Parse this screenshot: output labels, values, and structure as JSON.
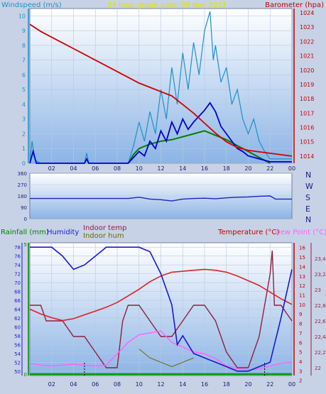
{
  "top": {
    "left_title": "Windspeed (m/s)",
    "center_title": "24 hour graph date: 09 Nov 2023",
    "right_title": "Barometer (hpa)"
  },
  "wind_dir": {
    "letters": [
      "N",
      "W",
      "S",
      "E",
      "N"
    ]
  },
  "bottom": {
    "label_rain": "Rainfall (mm)",
    "label_humidity": "Humidity",
    "label_indoor_temp": "Indoor temp",
    "label_indoor_hum": "Indoor hum",
    "label_temperature": "Temperature (°C)",
    "label_dewpoint": "Dew Point (°C)"
  },
  "colors": {
    "background": "#c8d2e6",
    "wind_gust": "#1e90c8",
    "wind_avg": "#0000d0",
    "wind_green": "#008000",
    "baro": "#d00000",
    "wind_dir": "#2020c0",
    "humidity": "#1a1ad0",
    "temperature": "#e02020",
    "dewpoint": "#ff60ff",
    "indoor_temp": "#902040",
    "indoor_hum": "#6a6a00",
    "rain": "#00a000"
  },
  "chart_data": [
    {
      "type": "line",
      "name": "wind-baro",
      "x_ticks": [
        "02",
        "04",
        "06",
        "08",
        "10",
        "12",
        "14",
        "16",
        "18",
        "20",
        "22",
        "00"
      ],
      "y_left_ticks": [
        "0",
        "1",
        "2",
        "3",
        "4",
        "5",
        "6",
        "7",
        "8",
        "9",
        "10"
      ],
      "y_right_ticks": [
        "1014",
        "1015",
        "1016",
        "1017",
        "1018",
        "1019",
        "1020",
        "1021",
        "1022",
        "1023",
        "1024"
      ],
      "ylim_left": [
        0,
        10.5
      ],
      "ylim_right": [
        1013.5,
        1024.3
      ],
      "xlim": [
        0,
        24
      ],
      "series": [
        {
          "key": "baro",
          "axis": "right",
          "points": [
            [
              0,
              1023.2
            ],
            [
              1,
              1022.7
            ],
            [
              2,
              1022.3
            ],
            [
              3,
              1021.9
            ],
            [
              4,
              1021.5
            ],
            [
              5,
              1021.1
            ],
            [
              6,
              1020.7
            ],
            [
              7,
              1020.3
            ],
            [
              8,
              1019.9
            ],
            [
              9,
              1019.5
            ],
            [
              10,
              1019.1
            ],
            [
              11,
              1018.8
            ],
            [
              12,
              1018.5
            ],
            [
              13,
              1018.2
            ],
            [
              14,
              1017.6
            ],
            [
              15,
              1017.0
            ],
            [
              16,
              1016.3
            ],
            [
              17,
              1015.6
            ],
            [
              18,
              1015.0
            ],
            [
              19,
              1014.6
            ],
            [
              20,
              1014.4
            ],
            [
              21,
              1014.3
            ],
            [
              22,
              1014.2
            ],
            [
              23,
              1014.1
            ],
            [
              24,
              1014.0
            ]
          ]
        },
        {
          "key": "gust",
          "axis": "left",
          "points": [
            [
              0,
              0
            ],
            [
              0.2,
              1.5
            ],
            [
              0.5,
              0.2
            ],
            [
              1,
              0
            ],
            [
              5,
              0
            ],
            [
              5.2,
              0.7
            ],
            [
              5.4,
              0
            ],
            [
              9,
              0
            ],
            [
              9.5,
              1.2
            ],
            [
              10,
              2.8
            ],
            [
              10.5,
              1.5
            ],
            [
              11,
              3.5
            ],
            [
              11.5,
              2.0
            ],
            [
              12,
              5.0
            ],
            [
              12.5,
              3.0
            ],
            [
              13,
              6.5
            ],
            [
              13.5,
              4.0
            ],
            [
              14,
              7.5
            ],
            [
              14.5,
              5.0
            ],
            [
              15,
              8.2
            ],
            [
              15.5,
              6.0
            ],
            [
              16,
              9.0
            ],
            [
              16.5,
              10.3
            ],
            [
              16.8,
              7.0
            ],
            [
              17,
              8.0
            ],
            [
              17.5,
              5.5
            ],
            [
              18,
              6.5
            ],
            [
              18.5,
              4.0
            ],
            [
              19,
              5.0
            ],
            [
              19.5,
              3.0
            ],
            [
              20,
              2.0
            ],
            [
              20.5,
              3.0
            ],
            [
              21,
              1.5
            ],
            [
              21.5,
              0.8
            ],
            [
              22,
              0.3
            ],
            [
              24,
              0.3
            ]
          ]
        },
        {
          "key": "avg",
          "axis": "left",
          "points": [
            [
              0,
              0
            ],
            [
              0.3,
              0.8
            ],
            [
              0.6,
              0
            ],
            [
              5,
              0
            ],
            [
              5.2,
              0.3
            ],
            [
              5.4,
              0
            ],
            [
              9,
              0
            ],
            [
              10,
              0.8
            ],
            [
              10.5,
              0.5
            ],
            [
              11,
              1.5
            ],
            [
              11.5,
              1.0
            ],
            [
              12,
              2.2
            ],
            [
              12.5,
              1.5
            ],
            [
              13,
              2.8
            ],
            [
              13.5,
              2.0
            ],
            [
              14,
              3.0
            ],
            [
              14.5,
              2.3
            ],
            [
              15,
              2.8
            ],
            [
              15.5,
              3.2
            ],
            [
              16,
              3.6
            ],
            [
              16.5,
              4.1
            ],
            [
              17,
              3.5
            ],
            [
              17.5,
              2.5
            ],
            [
              18,
              2.0
            ],
            [
              18.5,
              1.5
            ],
            [
              19,
              1.0
            ],
            [
              19.5,
              0.8
            ],
            [
              20,
              0.5
            ],
            [
              21,
              0.3
            ],
            [
              22,
              0.1
            ],
            [
              24,
              0.1
            ]
          ]
        },
        {
          "key": "green",
          "axis": "left",
          "points": [
            [
              9,
              0
            ],
            [
              9.5,
              0.6
            ],
            [
              10,
              1.0
            ],
            [
              11,
              1.3
            ],
            [
              12,
              1.5
            ],
            [
              13,
              1.6
            ],
            [
              14,
              1.8
            ],
            [
              15,
              2.0
            ],
            [
              16,
              2.2
            ],
            [
              17,
              1.9
            ],
            [
              18,
              1.6
            ],
            [
              19,
              1.2
            ],
            [
              20,
              0.8
            ],
            [
              21,
              0.4
            ],
            [
              22,
              0
            ]
          ]
        }
      ]
    },
    {
      "type": "line",
      "name": "wind-direction",
      "y_ticks": [
        "0",
        "90",
        "180",
        "270",
        "360"
      ],
      "ylim": [
        0,
        360
      ],
      "xlim": [
        0,
        24
      ],
      "series": [
        {
          "key": "dir",
          "points": [
            [
              0,
              160
            ],
            [
              9,
              160
            ],
            [
              9.5,
              165
            ],
            [
              10,
              170
            ],
            [
              11,
              155
            ],
            [
              12,
              150
            ],
            [
              13,
              140
            ],
            [
              14,
              155
            ],
            [
              15,
              160
            ],
            [
              16,
              162
            ],
            [
              17,
              158
            ],
            [
              18,
              165
            ],
            [
              19,
              170
            ],
            [
              20,
              172
            ],
            [
              21,
              178
            ],
            [
              22,
              180
            ],
            [
              22.5,
              155
            ],
            [
              24,
              155
            ]
          ]
        }
      ]
    },
    {
      "type": "line",
      "name": "temp-humidity",
      "x_ticks": [
        "02",
        "04",
        "06",
        "08",
        "10",
        "12",
        "14",
        "16",
        "18",
        "20",
        "22",
        "00"
      ],
      "y_left_ticks": [
        "50",
        "52",
        "54",
        "56",
        "58",
        "60",
        "62",
        "64",
        "66",
        "68",
        "70",
        "72",
        "74",
        "76",
        "78"
      ],
      "y_temp_ticks": [
        "2",
        "3",
        "4",
        "5",
        "6",
        "7",
        "8",
        "9",
        "10",
        "11",
        "12",
        "13",
        "14",
        "15",
        "16"
      ],
      "y_indoor_ticks": [
        "22",
        "22,2",
        "22,4",
        "22,6",
        "22,8",
        "23",
        "23,2",
        "23,4"
      ],
      "rain_ticks": [
        "0",
        "5"
      ],
      "ylim_left": [
        49,
        79
      ],
      "ylim_temp": [
        2.5,
        16.5
      ],
      "ylim_indoor": [
        21.9,
        23.6
      ],
      "xlim": [
        0,
        24
      ],
      "series": [
        {
          "key": "humidity",
          "axis": "left",
          "points": [
            [
              0,
              78
            ],
            [
              2,
              78
            ],
            [
              3,
              76
            ],
            [
              4,
              73
            ],
            [
              5,
              74
            ],
            [
              6,
              76
            ],
            [
              7,
              78
            ],
            [
              8,
              78
            ],
            [
              10,
              78
            ],
            [
              11,
              77
            ],
            [
              12,
              72
            ],
            [
              13,
              65
            ],
            [
              13.5,
              56
            ],
            [
              14,
              58
            ],
            [
              15,
              54
            ],
            [
              16,
              53
            ],
            [
              17,
              52
            ],
            [
              18,
              51
            ],
            [
              19,
              50
            ],
            [
              20,
              50
            ],
            [
              21,
              51
            ],
            [
              22,
              52
            ],
            [
              23,
              62
            ],
            [
              24,
              73
            ]
          ]
        },
        {
          "key": "temperature",
          "axis": "temp",
          "points": [
            [
              0,
              9.5
            ],
            [
              1,
              9.0
            ],
            [
              2,
              8.6
            ],
            [
              3,
              8.3
            ],
            [
              4,
              8.5
            ],
            [
              5,
              8.9
            ],
            [
              6,
              9.3
            ],
            [
              7,
              9.7
            ],
            [
              8,
              10.2
            ],
            [
              9,
              10.9
            ],
            [
              10,
              11.6
            ],
            [
              11,
              12.4
            ],
            [
              12,
              13.0
            ],
            [
              13,
              13.4
            ],
            [
              14,
              13.5
            ],
            [
              15,
              13.6
            ],
            [
              16,
              13.7
            ],
            [
              17,
              13.6
            ],
            [
              18,
              13.4
            ],
            [
              19,
              13.0
            ],
            [
              20,
              12.5
            ],
            [
              21,
              12.0
            ],
            [
              22,
              11.3
            ],
            [
              23,
              10.6
            ],
            [
              24,
              10.0
            ]
          ]
        },
        {
          "key": "dewpoint",
          "axis": "temp",
          "points": [
            [
              0,
              3.8
            ],
            [
              1,
              3.6
            ],
            [
              2,
              3.5
            ],
            [
              3,
              3.6
            ],
            [
              4,
              3.7
            ],
            [
              5,
              3.6
            ],
            [
              6,
              3.5
            ],
            [
              7,
              3.6
            ],
            [
              8,
              4.8
            ],
            [
              9,
              6.0
            ],
            [
              10,
              6.8
            ],
            [
              11,
              7.0
            ],
            [
              12,
              7.2
            ],
            [
              13,
              6.0
            ],
            [
              14,
              5.5
            ],
            [
              15,
              5.0
            ],
            [
              16,
              4.8
            ],
            [
              17,
              4.3
            ],
            [
              18,
              3.5
            ],
            [
              19,
              3.2
            ],
            [
              20,
              3.1
            ],
            [
              21,
              3.2
            ],
            [
              22,
              3.5
            ],
            [
              23,
              3.8
            ],
            [
              24,
              3.9
            ]
          ]
        },
        {
          "key": "indoor_temp",
          "axis": "indoor",
          "points": [
            [
              0,
              22.8
            ],
            [
              1,
              22.8
            ],
            [
              1.5,
              22.6
            ],
            [
              3,
              22.6
            ],
            [
              4,
              22.4
            ],
            [
              5,
              22.4
            ],
            [
              6,
              22.2
            ],
            [
              7,
              22.0
            ],
            [
              8,
              22.0
            ],
            [
              8.5,
              22.6
            ],
            [
              9,
              22.8
            ],
            [
              10,
              22.8
            ],
            [
              11,
              22.6
            ],
            [
              12,
              22.4
            ],
            [
              13,
              22.4
            ],
            [
              14,
              22.6
            ],
            [
              15,
              22.8
            ],
            [
              16,
              22.8
            ],
            [
              17,
              22.6
            ],
            [
              18,
              22.2
            ],
            [
              19,
              22.0
            ],
            [
              20,
              22.0
            ],
            [
              21,
              22.4
            ],
            [
              22,
              23.2
            ],
            [
              22.2,
              23.5
            ],
            [
              22.4,
              22.8
            ],
            [
              23,
              22.8
            ],
            [
              24,
              22.6
            ]
          ]
        },
        {
          "key": "indoor_hum",
          "axis": "left",
          "points": [
            [
              10,
              55
            ],
            [
              11,
              53
            ],
            [
              12,
              52
            ],
            [
              13,
              51
            ],
            [
              14,
              52
            ],
            [
              15,
              53
            ]
          ]
        }
      ]
    }
  ]
}
